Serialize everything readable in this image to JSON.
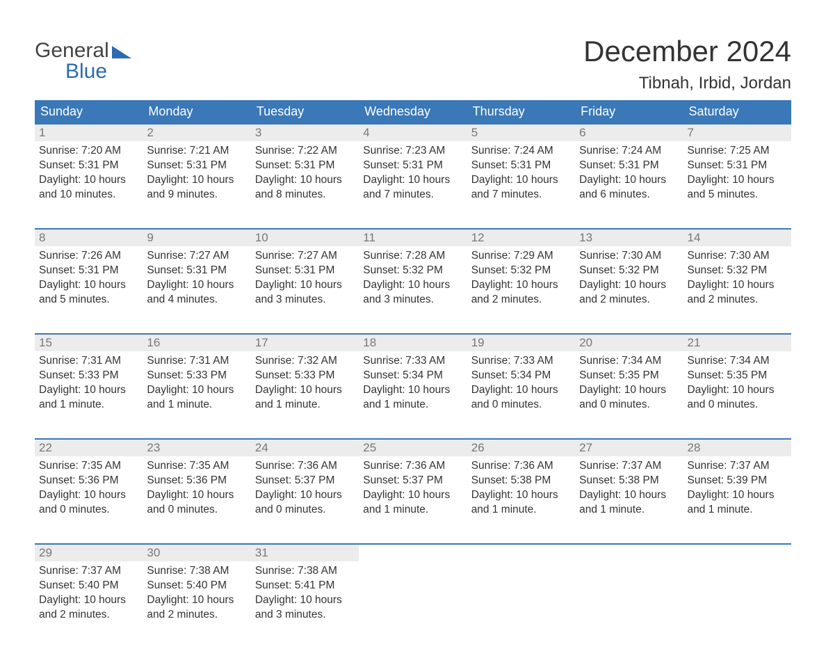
{
  "logo": {
    "line1": "General",
    "line2": "Blue",
    "brand_color": "#2d6ab0"
  },
  "title": "December 2024",
  "location": "Tibnah, Irbid, Jordan",
  "colors": {
    "header_bg": "#3a78b8",
    "header_text": "#ffffff",
    "daynum_bg": "#ececec",
    "daynum_text": "#777777",
    "row_border": "#3a78b8",
    "body_text": "#333333",
    "page_bg": "#ffffff"
  },
  "columns": [
    "Sunday",
    "Monday",
    "Tuesday",
    "Wednesday",
    "Thursday",
    "Friday",
    "Saturday"
  ],
  "weeks": [
    [
      {
        "n": "1",
        "sunrise": "7:20 AM",
        "sunset": "5:31 PM",
        "daylight": "10 hours and 10 minutes."
      },
      {
        "n": "2",
        "sunrise": "7:21 AM",
        "sunset": "5:31 PM",
        "daylight": "10 hours and 9 minutes."
      },
      {
        "n": "3",
        "sunrise": "7:22 AM",
        "sunset": "5:31 PM",
        "daylight": "10 hours and 8 minutes."
      },
      {
        "n": "4",
        "sunrise": "7:23 AM",
        "sunset": "5:31 PM",
        "daylight": "10 hours and 7 minutes."
      },
      {
        "n": "5",
        "sunrise": "7:24 AM",
        "sunset": "5:31 PM",
        "daylight": "10 hours and 7 minutes."
      },
      {
        "n": "6",
        "sunrise": "7:24 AM",
        "sunset": "5:31 PM",
        "daylight": "10 hours and 6 minutes."
      },
      {
        "n": "7",
        "sunrise": "7:25 AM",
        "sunset": "5:31 PM",
        "daylight": "10 hours and 5 minutes."
      }
    ],
    [
      {
        "n": "8",
        "sunrise": "7:26 AM",
        "sunset": "5:31 PM",
        "daylight": "10 hours and 5 minutes."
      },
      {
        "n": "9",
        "sunrise": "7:27 AM",
        "sunset": "5:31 PM",
        "daylight": "10 hours and 4 minutes."
      },
      {
        "n": "10",
        "sunrise": "7:27 AM",
        "sunset": "5:31 PM",
        "daylight": "10 hours and 3 minutes."
      },
      {
        "n": "11",
        "sunrise": "7:28 AM",
        "sunset": "5:32 PM",
        "daylight": "10 hours and 3 minutes."
      },
      {
        "n": "12",
        "sunrise": "7:29 AM",
        "sunset": "5:32 PM",
        "daylight": "10 hours and 2 minutes."
      },
      {
        "n": "13",
        "sunrise": "7:30 AM",
        "sunset": "5:32 PM",
        "daylight": "10 hours and 2 minutes."
      },
      {
        "n": "14",
        "sunrise": "7:30 AM",
        "sunset": "5:32 PM",
        "daylight": "10 hours and 2 minutes."
      }
    ],
    [
      {
        "n": "15",
        "sunrise": "7:31 AM",
        "sunset": "5:33 PM",
        "daylight": "10 hours and 1 minute."
      },
      {
        "n": "16",
        "sunrise": "7:31 AM",
        "sunset": "5:33 PM",
        "daylight": "10 hours and 1 minute."
      },
      {
        "n": "17",
        "sunrise": "7:32 AM",
        "sunset": "5:33 PM",
        "daylight": "10 hours and 1 minute."
      },
      {
        "n": "18",
        "sunrise": "7:33 AM",
        "sunset": "5:34 PM",
        "daylight": "10 hours and 1 minute."
      },
      {
        "n": "19",
        "sunrise": "7:33 AM",
        "sunset": "5:34 PM",
        "daylight": "10 hours and 0 minutes."
      },
      {
        "n": "20",
        "sunrise": "7:34 AM",
        "sunset": "5:35 PM",
        "daylight": "10 hours and 0 minutes."
      },
      {
        "n": "21",
        "sunrise": "7:34 AM",
        "sunset": "5:35 PM",
        "daylight": "10 hours and 0 minutes."
      }
    ],
    [
      {
        "n": "22",
        "sunrise": "7:35 AM",
        "sunset": "5:36 PM",
        "daylight": "10 hours and 0 minutes."
      },
      {
        "n": "23",
        "sunrise": "7:35 AM",
        "sunset": "5:36 PM",
        "daylight": "10 hours and 0 minutes."
      },
      {
        "n": "24",
        "sunrise": "7:36 AM",
        "sunset": "5:37 PM",
        "daylight": "10 hours and 0 minutes."
      },
      {
        "n": "25",
        "sunrise": "7:36 AM",
        "sunset": "5:37 PM",
        "daylight": "10 hours and 1 minute."
      },
      {
        "n": "26",
        "sunrise": "7:36 AM",
        "sunset": "5:38 PM",
        "daylight": "10 hours and 1 minute."
      },
      {
        "n": "27",
        "sunrise": "7:37 AM",
        "sunset": "5:38 PM",
        "daylight": "10 hours and 1 minute."
      },
      {
        "n": "28",
        "sunrise": "7:37 AM",
        "sunset": "5:39 PM",
        "daylight": "10 hours and 1 minute."
      }
    ],
    [
      {
        "n": "29",
        "sunrise": "7:37 AM",
        "sunset": "5:40 PM",
        "daylight": "10 hours and 2 minutes."
      },
      {
        "n": "30",
        "sunrise": "7:38 AM",
        "sunset": "5:40 PM",
        "daylight": "10 hours and 2 minutes."
      },
      {
        "n": "31",
        "sunrise": "7:38 AM",
        "sunset": "5:41 PM",
        "daylight": "10 hours and 3 minutes."
      },
      null,
      null,
      null,
      null
    ]
  ],
  "labels": {
    "sunrise": "Sunrise: ",
    "sunset": "Sunset: ",
    "daylight": "Daylight: "
  }
}
